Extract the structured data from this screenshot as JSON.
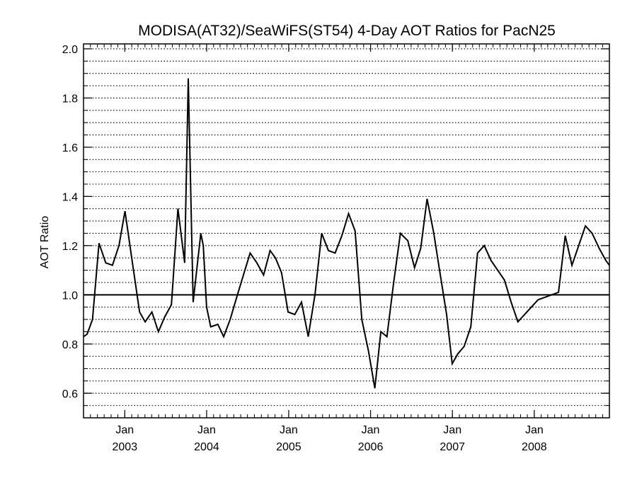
{
  "chart_data": {
    "type": "line",
    "title": "MODISA(AT32)/SeaWiFS(ST54) 4-Day AOT Ratios for PacN25",
    "xlabel": "",
    "ylabel": "AOT Ratio",
    "xlim": [
      "2002-07-01",
      "2008-12-01"
    ],
    "ylim": [
      0.5,
      2.02
    ],
    "y_ticks": [
      0.6,
      0.8,
      1.0,
      1.2,
      1.4,
      1.6,
      1.8,
      2.0
    ],
    "y_tick_labels": [
      "0.6",
      "0.8",
      "1.0",
      "1.2",
      "1.4",
      "1.6",
      "1.8",
      "2.0"
    ],
    "y_minor_step": 0.05,
    "x_ticks": [
      {
        "date": "2003-01-01",
        "month": "Jan",
        "year": "2003"
      },
      {
        "date": "2004-01-01",
        "month": "Jan",
        "year": "2004"
      },
      {
        "date": "2005-01-01",
        "month": "Jan",
        "year": "2005"
      },
      {
        "date": "2006-01-01",
        "month": "Jan",
        "year": "2006"
      },
      {
        "date": "2007-01-01",
        "month": "Jan",
        "year": "2007"
      },
      {
        "date": "2008-01-01",
        "month": "Jan",
        "year": "2008"
      }
    ],
    "grid": "horizontal dotted",
    "reference_line": 1.0,
    "series": [
      {
        "color": "#000000",
        "x": [
          "2002-07-01",
          "2002-07-17",
          "2002-08-10",
          "2002-09-08",
          "2002-10-08",
          "2002-11-07",
          "2002-12-06",
          "2003-01-02",
          "2003-02-01",
          "2003-03-08",
          "2003-04-02",
          "2003-05-02",
          "2003-05-31",
          "2003-06-28",
          "2003-07-28",
          "2003-08-26",
          "2003-09-25",
          "2003-10-11",
          "2003-11-02",
          "2003-12-06",
          "2003-12-17",
          "2004-01-01",
          "2004-01-19",
          "2004-02-20",
          "2004-03-17",
          "2004-04-15",
          "2004-05-14",
          "2004-06-13",
          "2004-07-13",
          "2004-08-12",
          "2004-09-11",
          "2004-10-10",
          "2004-11-03",
          "2004-11-30",
          "2004-12-29",
          "2005-01-28",
          "2005-02-27",
          "2005-03-29",
          "2005-04-28",
          "2005-05-28",
          "2005-06-27",
          "2005-07-27",
          "2005-08-26",
          "2005-09-25",
          "2005-10-24",
          "2005-11-23",
          "2005-12-23",
          "2006-01-20",
          "2006-02-16",
          "2006-03-15",
          "2006-04-14",
          "2006-05-14",
          "2006-06-16",
          "2006-07-16",
          "2006-08-13",
          "2006-09-10",
          "2006-10-10",
          "2006-11-03",
          "2006-12-06",
          "2006-12-31",
          "2007-01-25",
          "2007-02-22",
          "2007-03-24",
          "2007-04-23",
          "2007-05-23",
          "2007-06-22",
          "2007-07-22",
          "2007-08-21",
          "2007-09-20",
          "2007-10-20",
          "2007-11-19",
          "2007-12-19",
          "2008-01-18",
          "2008-04-18",
          "2008-05-18",
          "2008-06-17",
          "2008-07-17",
          "2008-08-16",
          "2008-09-15",
          "2008-10-16",
          "2008-11-15",
          "2008-12-01"
        ],
        "y": [
          0.83,
          0.84,
          0.9,
          1.21,
          1.13,
          1.12,
          1.2,
          1.34,
          1.15,
          0.93,
          0.89,
          0.93,
          0.85,
          0.91,
          0.96,
          1.35,
          1.13,
          1.88,
          0.97,
          1.25,
          1.2,
          0.95,
          0.87,
          0.88,
          0.83,
          0.9,
          0.99,
          1.08,
          1.17,
          1.13,
          1.08,
          1.18,
          1.15,
          1.09,
          0.93,
          0.92,
          0.97,
          0.83,
          1.0,
          1.25,
          1.18,
          1.17,
          1.24,
          1.33,
          1.26,
          0.9,
          0.77,
          0.62,
          0.85,
          0.83,
          1.05,
          1.25,
          1.22,
          1.11,
          1.19,
          1.39,
          1.25,
          1.11,
          0.92,
          0.72,
          0.76,
          0.79,
          0.87,
          1.17,
          1.2,
          1.14,
          1.1,
          1.06,
          0.97,
          0.89,
          0.92,
          0.95,
          0.98,
          1.01,
          1.24,
          1.12,
          1.2,
          1.28,
          1.25,
          1.19,
          1.14,
          1.12
        ]
      }
    ]
  }
}
